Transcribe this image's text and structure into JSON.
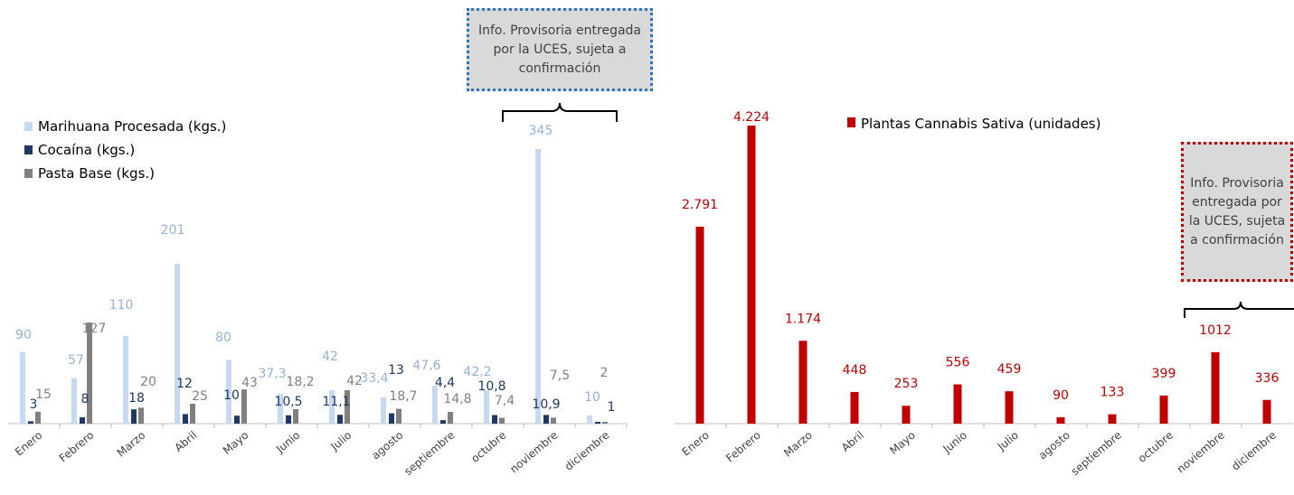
{
  "colors": {
    "marihuana": "#c5d9f1",
    "cocaina": "#1f3864",
    "pasta": "#808080",
    "plantas": "#c00000",
    "axis": "#bfbfbf"
  },
  "notes": {
    "left": "Info. Provisoria entregada por la UCES, sujeta a confirmación",
    "right": "Info. Provisoria entregada por la UCES, sujeta a confirmación"
  },
  "chart_data": [
    {
      "type": "bar",
      "categories": [
        "Enero",
        "Febrero",
        "Marzo",
        "Abril",
        "Mayo",
        "Junio",
        "Julio",
        "agosto",
        "septiembre",
        "octubre",
        "noviembre",
        "diciembre"
      ],
      "series": [
        {
          "name": "Marihuana Procesada (kgs.)",
          "values": [
            90,
            57,
            110,
            201,
            80,
            37.3,
            42,
            33.4,
            47.6,
            42.2,
            345,
            10
          ],
          "labels": [
            "90",
            "57",
            "110",
            "201",
            "80",
            "37,3",
            "42",
            "33,4",
            "47,6",
            "42,2",
            "345",
            "10"
          ]
        },
        {
          "name": "Cocaína (kgs.)",
          "values": [
            3,
            8,
            18,
            12,
            10,
            10.5,
            11.1,
            13,
            4.4,
            10.8,
            10.9,
            1
          ],
          "labels": [
            "3",
            "8",
            "18",
            "12",
            "10",
            "10,5",
            "11,1",
            "13",
            "4,4",
            "10,8",
            "10,9",
            "1"
          ]
        },
        {
          "name": "Pasta Base (kgs.)",
          "values": [
            15,
            127,
            20,
            25,
            43,
            18.2,
            42,
            18.7,
            14.8,
            7.4,
            7.5,
            2
          ],
          "labels": [
            "15",
            "127",
            "20",
            "25",
            "43",
            "18,2",
            "42",
            "18,7",
            "14,8",
            "7,4",
            "7,5",
            "2"
          ]
        }
      ],
      "legend_position": "top-left",
      "grid": false
    },
    {
      "type": "bar",
      "categories": [
        "Enero",
        "Febrero",
        "Marzo",
        "Abril",
        "Mayo",
        "Junio",
        "Julio",
        "agosto",
        "septiembre",
        "octubre",
        "noviembre",
        "diciembre"
      ],
      "series": [
        {
          "name": "Plantas Cannabis Sativa (unidades)",
          "values": [
            2791,
            4224,
            1174,
            448,
            253,
            556,
            459,
            90,
            133,
            399,
            1012,
            336
          ],
          "labels": [
            "2.791",
            "4.224",
            "1.174",
            "448",
            "253",
            "556",
            "459",
            "90",
            "133",
            "399",
            "1012",
            "336"
          ]
        }
      ],
      "legend_position": "top",
      "grid": false
    }
  ]
}
